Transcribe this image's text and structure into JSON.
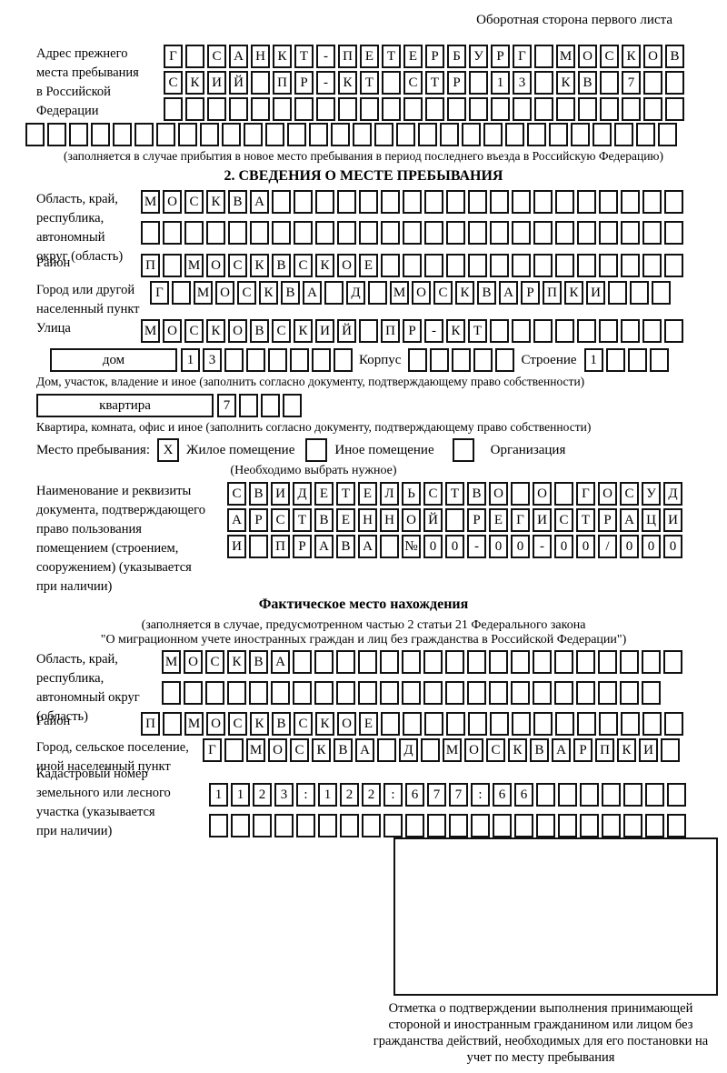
{
  "page": {
    "header_note": "Оборотная сторона первого листа"
  },
  "prev_address": {
    "label": "Адрес прежнего\nместа пребывания\nв Российской\nФедерации",
    "rows": [
      [
        "Г",
        "",
        "С",
        "А",
        "Н",
        "К",
        "Т",
        "-",
        "П",
        "Е",
        "Т",
        "Е",
        "Р",
        "Б",
        "У",
        "Р",
        "Г",
        "",
        "М",
        "О",
        "С",
        "К",
        "О",
        "В"
      ],
      [
        "С",
        "К",
        "И",
        "Й",
        "",
        "П",
        "Р",
        "-",
        "К",
        "Т",
        "",
        "С",
        "Т",
        "Р",
        "",
        "1",
        "3",
        "",
        "К",
        "В",
        "",
        "7",
        "",
        ""
      ],
      [
        "",
        "",
        "",
        "",
        "",
        "",
        "",
        "",
        "",
        "",
        "",
        "",
        "",
        "",
        "",
        "",
        "",
        "",
        "",
        "",
        "",
        "",
        "",
        ""
      ]
    ],
    "overflow_row": [
      "",
      "",
      "",
      "",
      "",
      "",
      "",
      "",
      "",
      "",
      "",
      "",
      "",
      "",
      "",
      "",
      "",
      "",
      "",
      "",
      "",
      "",
      "",
      "",
      "",
      "",
      "",
      "",
      "",
      ""
    ],
    "caption": "(заполняется в случае прибытия в новое место пребывания в период последнего въезда в Российскую Федерацию)"
  },
  "section2": {
    "title": "2. СВЕДЕНИЯ О МЕСТЕ ПРЕБЫВАНИЯ",
    "region": {
      "label": "Область, край,\nреспублика,\nавтономный\nокруг (область)",
      "rows": [
        [
          "М",
          "О",
          "С",
          "К",
          "В",
          "А",
          "",
          "",
          "",
          "",
          "",
          "",
          "",
          "",
          "",
          "",
          "",
          "",
          "",
          "",
          "",
          "",
          "",
          "",
          ""
        ],
        [
          "",
          "",
          "",
          "",
          "",
          "",
          "",
          "",
          "",
          "",
          "",
          "",
          "",
          "",
          "",
          "",
          "",
          "",
          "",
          "",
          "",
          "",
          "",
          "",
          ""
        ]
      ]
    },
    "district": {
      "label": "Район",
      "row": [
        "П",
        "",
        "М",
        "О",
        "С",
        "К",
        "В",
        "С",
        "К",
        "О",
        "Е",
        "",
        "",
        "",
        "",
        "",
        "",
        "",
        "",
        "",
        "",
        "",
        "",
        "",
        ""
      ]
    },
    "city": {
      "label": "Город или другой\nнаселенный пункт",
      "row": [
        "Г",
        "",
        "М",
        "О",
        "С",
        "К",
        "В",
        "А",
        "",
        "Д",
        "",
        "М",
        "О",
        "С",
        "К",
        "В",
        "А",
        "Р",
        "П",
        "К",
        "И",
        "",
        "",
        ""
      ]
    },
    "street": {
      "label": "Улица",
      "row": [
        "М",
        "О",
        "С",
        "К",
        "О",
        "В",
        "С",
        "К",
        "И",
        "Й",
        "",
        "П",
        "Р",
        "-",
        "К",
        "Т",
        "",
        "",
        "",
        "",
        "",
        "",
        "",
        "",
        ""
      ]
    },
    "house": {
      "box_label": "дом",
      "cells": [
        "1",
        "3",
        "",
        "",
        "",
        "",
        "",
        ""
      ],
      "korpus_label": "Корпус",
      "korpus_cells": [
        "",
        "",
        "",
        "",
        ""
      ],
      "stroenie_label": "Строение",
      "stroenie_cells": [
        "1",
        "",
        "",
        ""
      ],
      "caption": "Дом, участок, владение и иное (заполнить согласно документу, подтверждающему право собственности)"
    },
    "apartment": {
      "box_label": "квартира",
      "cells": [
        "7",
        "",
        "",
        ""
      ],
      "caption": "Квартира, комната, офис и иное (заполнить согласно документу, подтверждающему право собственности)"
    },
    "place_type": {
      "label": "Место пребывания:",
      "options": [
        {
          "mark": "X",
          "label": "Жилое помещение"
        },
        {
          "mark": "",
          "label": "Иное помещение"
        },
        {
          "mark": "",
          "label": "Организация"
        }
      ],
      "note": "(Необходимо выбрать нужное)"
    },
    "document": {
      "label": "Наименование и реквизиты\nдокумента, подтверждающего\nправо пользования\nпомещением (строением,\nсооружением) (указывается\nпри наличии)",
      "rows": [
        [
          "С",
          "В",
          "И",
          "Д",
          "Е",
          "Т",
          "Е",
          "Л",
          "Ь",
          "С",
          "Т",
          "В",
          "О",
          "",
          "О",
          "",
          "Г",
          "О",
          "С",
          "У",
          "Д"
        ],
        [
          "А",
          "Р",
          "С",
          "Т",
          "В",
          "Е",
          "Н",
          "Н",
          "О",
          "Й",
          "",
          "Р",
          "Е",
          "Г",
          "И",
          "С",
          "Т",
          "Р",
          "А",
          "Ц",
          "И"
        ],
        [
          "И",
          "",
          "П",
          "Р",
          "А",
          "В",
          "А",
          "",
          "№",
          "0",
          "0",
          "-",
          "0",
          "0",
          "-",
          "0",
          "0",
          "/",
          "0",
          "0",
          "0"
        ]
      ]
    }
  },
  "section3": {
    "title": "Фактическое место нахождения",
    "caption_line1": "(заполняется в случае, предусмотренном частью 2 статьи 21 Федерального закона",
    "caption_line2": "\"О миграционном учете иностранных граждан и лиц без гражданства в Российской Федерации\")",
    "region": {
      "label": "Область, край,\nреспублика,\nавтономный округ\n(область)",
      "rows": [
        [
          "М",
          "О",
          "С",
          "К",
          "В",
          "А",
          "",
          "",
          "",
          "",
          "",
          "",
          "",
          "",
          "",
          "",
          "",
          "",
          "",
          "",
          "",
          "",
          "",
          ""
        ],
        [
          "",
          "",
          "",
          "",
          "",
          "",
          "",
          "",
          "",
          "",
          "",
          "",
          "",
          "",
          "",
          "",
          "",
          "",
          "",
          "",
          "",
          "",
          ""
        ]
      ]
    },
    "district": {
      "label": "Район",
      "row": [
        "П",
        "",
        "М",
        "О",
        "С",
        "К",
        "В",
        "С",
        "К",
        "О",
        "Е",
        "",
        "",
        "",
        "",
        "",
        "",
        "",
        "",
        "",
        "",
        "",
        "",
        "",
        ""
      ]
    },
    "city": {
      "label": "Город, сельское поселение,\nиной населенный пункт",
      "row": [
        "Г",
        "",
        "М",
        "О",
        "С",
        "К",
        "В",
        "А",
        "",
        "Д",
        "",
        "М",
        "О",
        "С",
        "К",
        "В",
        "А",
        "Р",
        "П",
        "К",
        "И",
        ""
      ]
    },
    "cadastre": {
      "label": "Кадастровый номер\nземельного или лесного\nучастка (указывается\nпри наличии)",
      "rows": [
        [
          "1",
          "1",
          "2",
          "3",
          ":",
          "1",
          "2",
          "2",
          ":",
          "6",
          "7",
          "7",
          ":",
          "6",
          "6",
          "",
          "",
          "",
          "",
          "",
          "",
          ""
        ],
        [
          "",
          "",
          "",
          "",
          "",
          "",
          "",
          "",
          "",
          "",
          "",
          "",
          "",
          "",
          "",
          "",
          "",
          "",
          "",
          "",
          "",
          ""
        ]
      ]
    }
  },
  "stamp": {
    "caption": "Отметка о подтверждении выполнения принимающей стороной и иностранным гражданином или лицом без гражданства действий, необходимых для его постановки на учет по месту пребывания"
  }
}
